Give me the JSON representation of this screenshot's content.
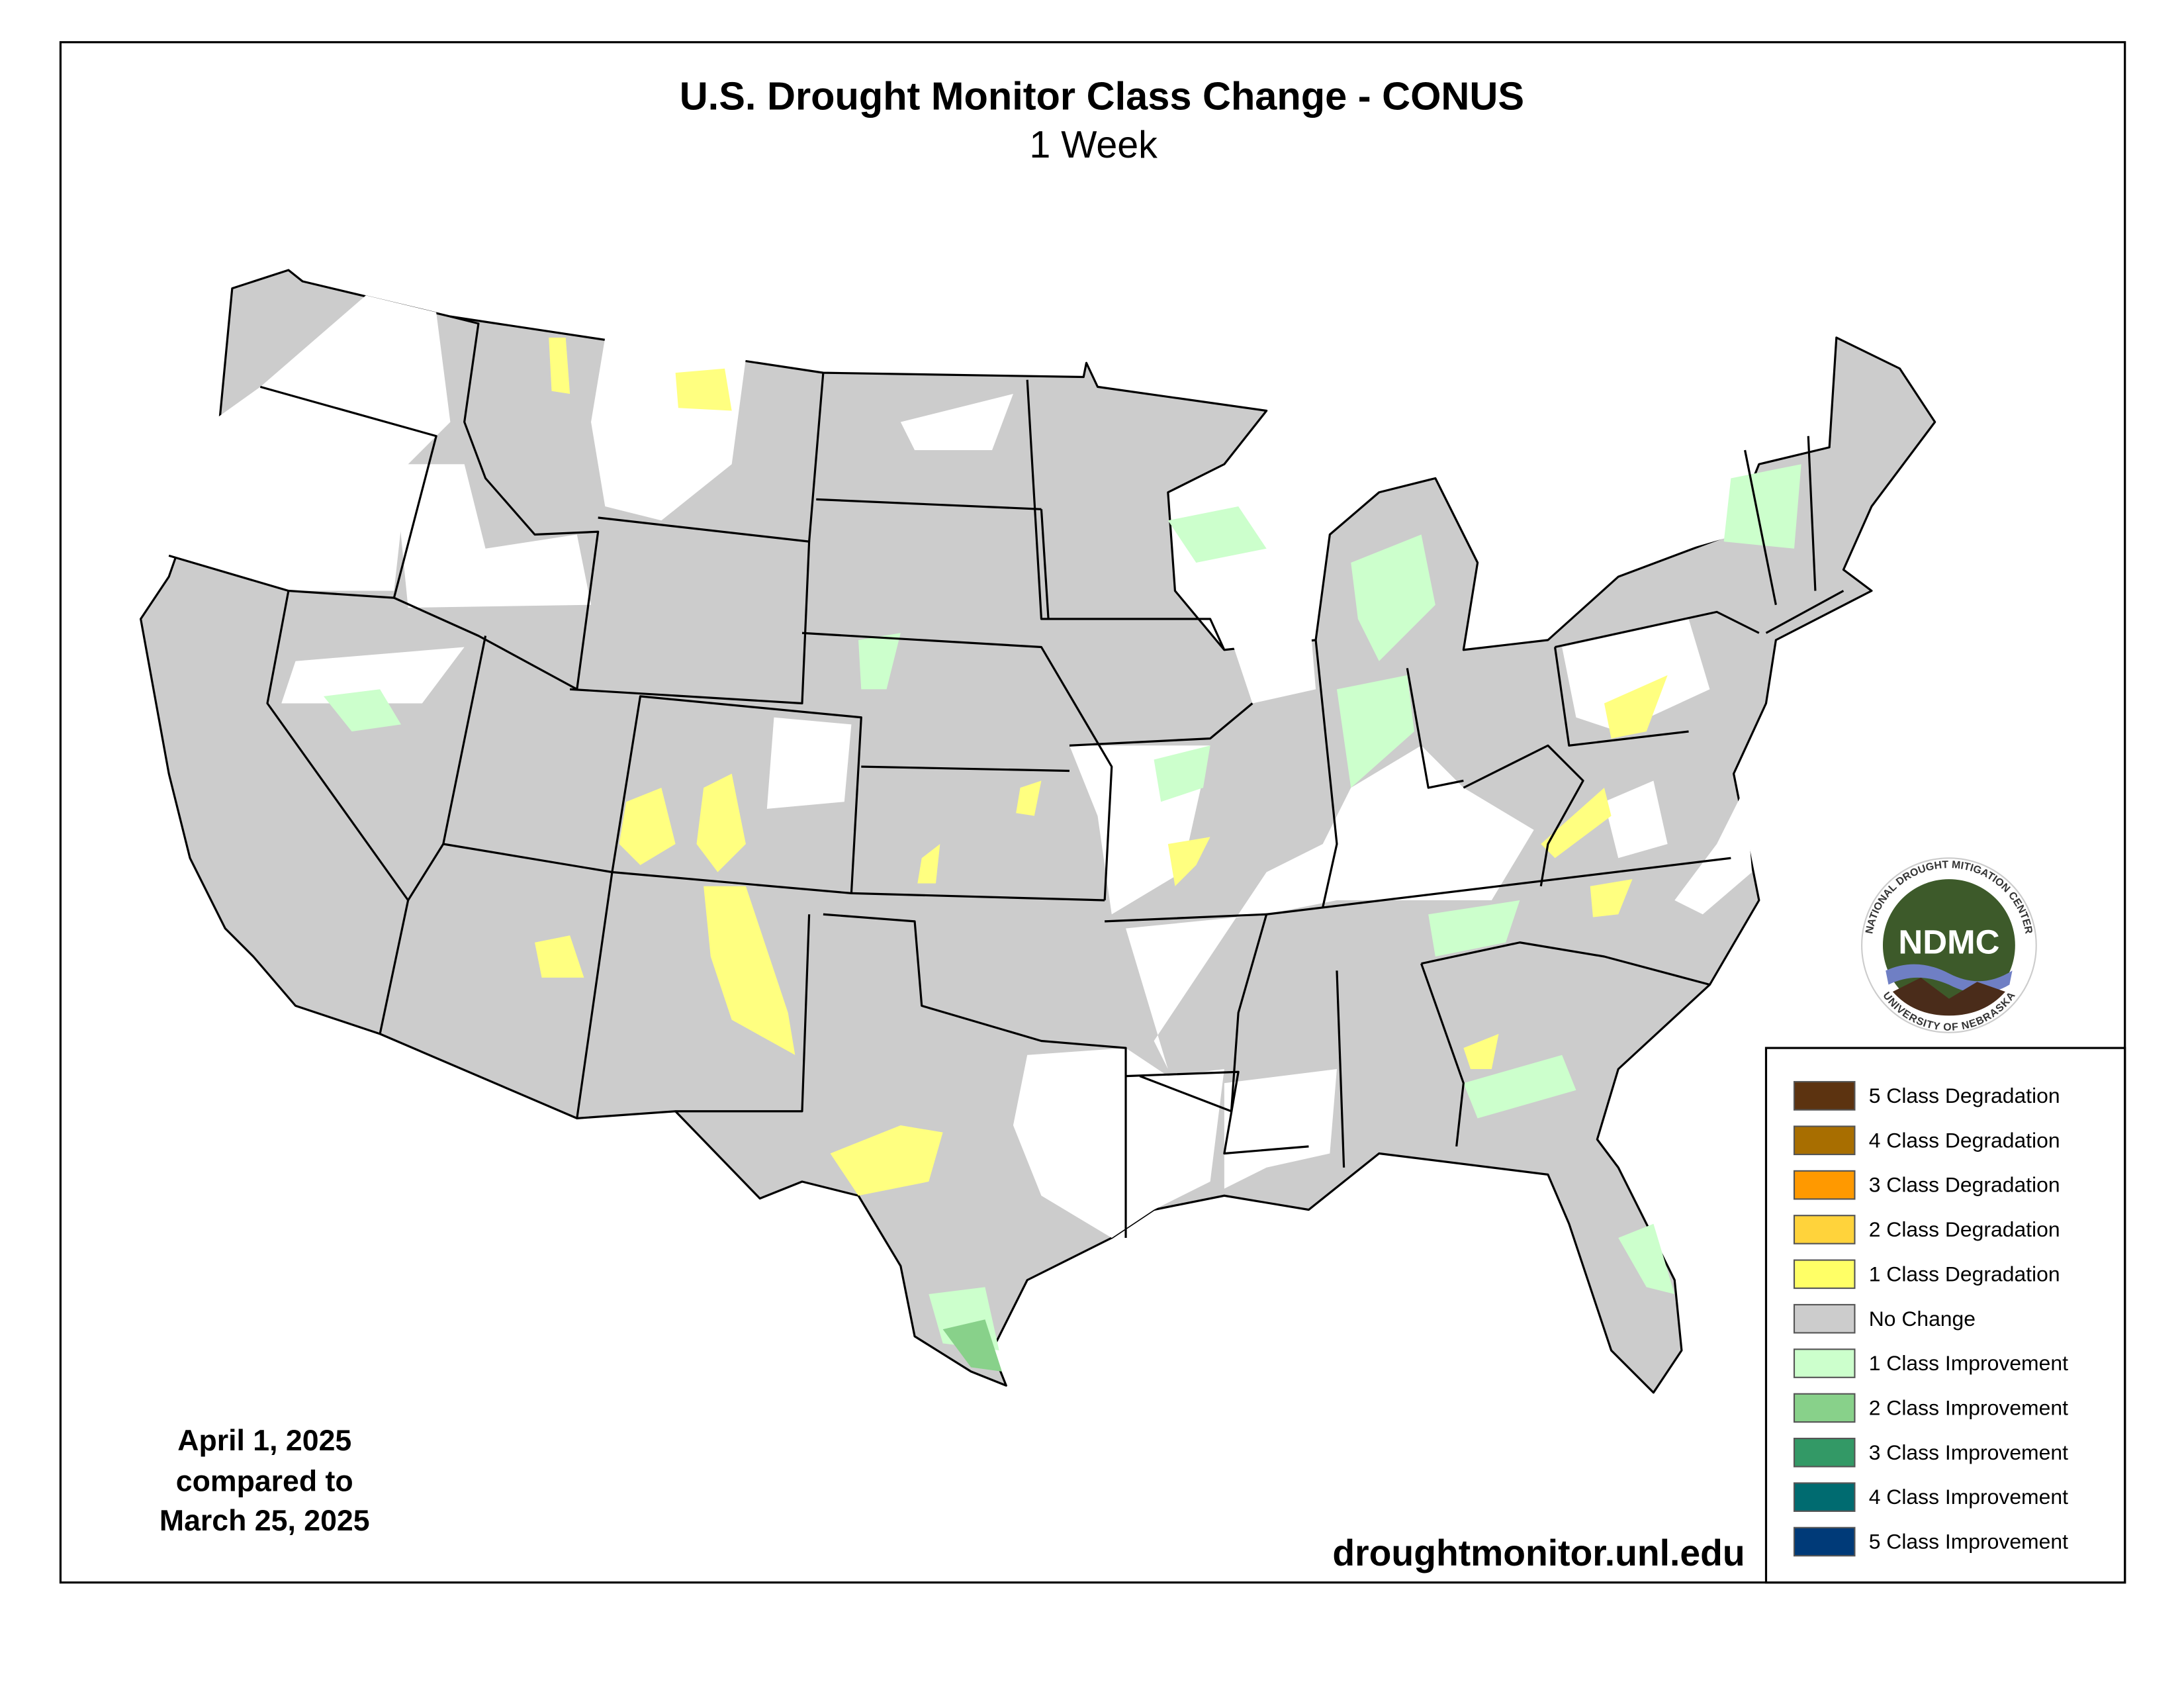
{
  "header": {
    "title": "U.S. Drought Monitor Class Change - CONUS",
    "subtitle": "1 Week"
  },
  "dates": {
    "line1": "April 1, 2025",
    "line2": "compared to",
    "line3": "March 25, 2025"
  },
  "url": "droughtmonitor.unl.edu",
  "logo": {
    "abbr": "NDMC",
    "top_text": "NATIONAL DROUGHT MITIGATION CENTER",
    "bottom_text": "UNIVERSITY OF NEBRASKA"
  },
  "legend": {
    "items": [
      {
        "label": "5 Class Degradation",
        "color": "#5c3310"
      },
      {
        "label": "4 Class Degradation",
        "color": "#a86e00"
      },
      {
        "label": "3 Class Degradation",
        "color": "#ff9900"
      },
      {
        "label": "2 Class Degradation",
        "color": "#ffd33b"
      },
      {
        "label": "1 Class Degradation",
        "color": "#ffff66"
      },
      {
        "label": "No Change",
        "color": "#cccccc"
      },
      {
        "label": "1 Class Improvement",
        "color": "#ccffcc"
      },
      {
        "label": "2 Class Improvement",
        "color": "#88d18a"
      },
      {
        "label": "3 Class Improvement",
        "color": "#339966"
      },
      {
        "label": "4 Class Improvement",
        "color": "#006b70"
      },
      {
        "label": "5 Class Improvement",
        "color": "#003a78"
      }
    ]
  }
}
